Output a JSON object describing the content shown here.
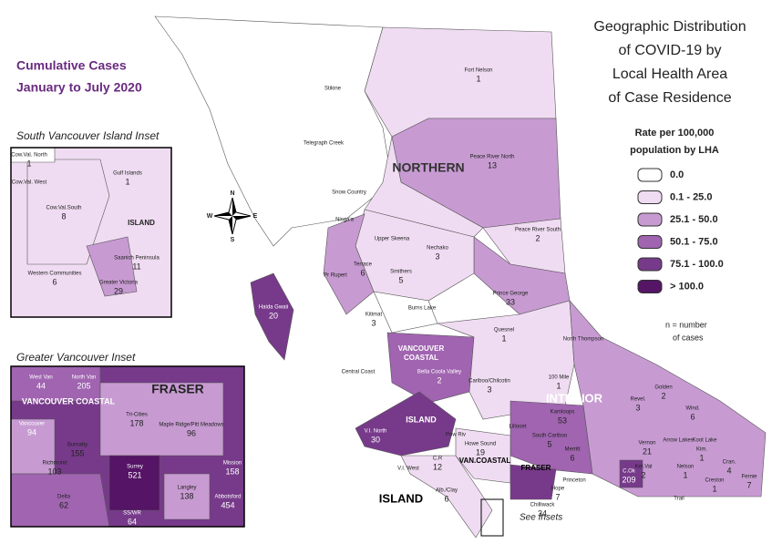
{
  "title": [
    "Geographic Distribution",
    "of COVID-19 by",
    "Local Health Area",
    "of Case Residence"
  ],
  "subtitle": [
    "Cumulative Cases",
    "January to July 2020"
  ],
  "legend": {
    "title": [
      "Rate per 100,000",
      "population by LHA"
    ],
    "items": [
      {
        "label": "0.0",
        "color": "#ffffff"
      },
      {
        "label": "0.1 - 25.0",
        "color": "#f0dcf2"
      },
      {
        "label": "25.1 - 50.0",
        "color": "#c79bd2"
      },
      {
        "label": "50.1 - 75.0",
        "color": "#a064b0"
      },
      {
        "label": "75.1 - 100.0",
        "color": "#773a8a"
      },
      {
        "label": "> 100.0",
        "color": "#551466"
      }
    ]
  },
  "note": [
    "n = number",
    "of cases"
  ],
  "see_insets": "See Insets",
  "compass": {
    "n": "N",
    "e": "E",
    "s": "S",
    "w": "W"
  },
  "main_map": {
    "regions": [
      "NORTHERN",
      [
        "VANCOUVER",
        "COASTAL"
      ],
      "INTERIOR",
      "ISLAND",
      "ISLAND",
      "VAN.COASTAL",
      "FRASER"
    ],
    "areas": [
      {
        "name": "Stikine"
      },
      {
        "name": "Fort Nelson",
        "cases": 1
      },
      {
        "name": "Telegraph Creek"
      },
      {
        "name": "Peace River North",
        "cases": 13
      },
      {
        "name": "Snow Country"
      },
      {
        "name": "Peace River South",
        "cases": 2
      },
      {
        "name": "Nisga'a"
      },
      {
        "name": "Upper Skeena"
      },
      {
        "name": "Nechako",
        "cases": 3
      },
      {
        "name": "Terrace",
        "cases": 6
      },
      {
        "name": "Smithers",
        "cases": 5
      },
      {
        "name": "Pr Rupert"
      },
      {
        "name": "Prince George",
        "cases": 33
      },
      {
        "name": "Haida Gwaii",
        "cases": 20
      },
      {
        "name": "Kitimat",
        "cases": 3
      },
      {
        "name": "Burns Lake"
      },
      {
        "name": "Quesnel",
        "cases": 1
      },
      {
        "name": "Bella Coola Valley",
        "cases": 2
      },
      {
        "name": "Central Coast"
      },
      {
        "name": "Cariboo/Chilcotin",
        "cases": 3
      },
      {
        "name": "100 Mile",
        "cases": 1
      },
      {
        "name": "North Thompson"
      },
      {
        "name": "Revel.",
        "cases": 3
      },
      {
        "name": "Golden",
        "cases": 2
      },
      {
        "name": "Kamloops",
        "cases": 53
      },
      {
        "name": "Wind.",
        "cases": 6
      },
      {
        "name": "South Cariboo",
        "cases": 5
      },
      {
        "name": "Merritt",
        "cases": 6
      },
      {
        "name": "Vernon",
        "cases": 21
      },
      {
        "name": "C.Ok",
        "cases": 209
      },
      {
        "name": "Arrow Lakes"
      },
      {
        "name": "Koot Lake"
      },
      {
        "name": "Kim.",
        "cases": 1
      },
      {
        "name": "Cran.",
        "cases": 4
      },
      {
        "name": "Fernie",
        "cases": 7
      },
      {
        "name": "Nelson",
        "cases": 1
      },
      {
        "name": "Creston",
        "cases": 1
      },
      {
        "name": "Trail"
      },
      {
        "name": "Ket.Val",
        "cases": 2
      },
      {
        "name": "Princeton"
      },
      {
        "name": "Hope",
        "cases": 7
      },
      {
        "name": "Chilliwack",
        "cases": 34
      },
      {
        "name": "V.I. North",
        "cases": 30
      },
      {
        "name": "V.I. West"
      },
      {
        "name": "Lillooet"
      },
      {
        "name": "Pow Riv"
      },
      {
        "name": "Howe Sound",
        "cases": 19
      },
      {
        "name": "C.R",
        "cases": 12
      },
      {
        "name": "Alb./Clay",
        "cases": 6
      }
    ]
  },
  "south_island_inset": {
    "title": "South Vancouver Island Inset",
    "region": "ISLAND",
    "areas": [
      {
        "name": "Cow.Val. North",
        "cases": 1
      },
      {
        "name": "Cow.Val. West"
      },
      {
        "name": "Cow.Val.South",
        "cases": 8
      },
      {
        "name": "Gulf Islands",
        "cases": 1
      },
      {
        "name": "Saanich Peninsula",
        "cases": 11
      },
      {
        "name": "Western Communities",
        "cases": 6
      },
      {
        "name": "Greater Victoria",
        "cases": 29
      }
    ]
  },
  "vancouver_inset": {
    "title": "Greater Vancouver Inset",
    "regions": [
      "VANCOUVER COASTAL",
      "FRASER"
    ],
    "areas": [
      {
        "name": "West Van",
        "cases": 44
      },
      {
        "name": "North Van",
        "cases": 205
      },
      {
        "name": "Tri-Cities",
        "cases": 178
      },
      {
        "name": "Maple Ridge/Pitt Meadows",
        "cases": 96
      },
      {
        "name": "Mission",
        "cases": 158
      },
      {
        "name": "Vancouver",
        "cases": 94
      },
      {
        "name": "Burnaby",
        "cases": 155
      },
      {
        "name": "Richmond",
        "cases": 103
      },
      {
        "name": "Delta",
        "cases": 62
      },
      {
        "name": "Surrey",
        "cases": 521
      },
      {
        "name": "Langley",
        "cases": 138
      },
      {
        "name": "Abbotsford",
        "cases": 454
      },
      {
        "name": "SS/WR",
        "cases": 64
      }
    ]
  }
}
